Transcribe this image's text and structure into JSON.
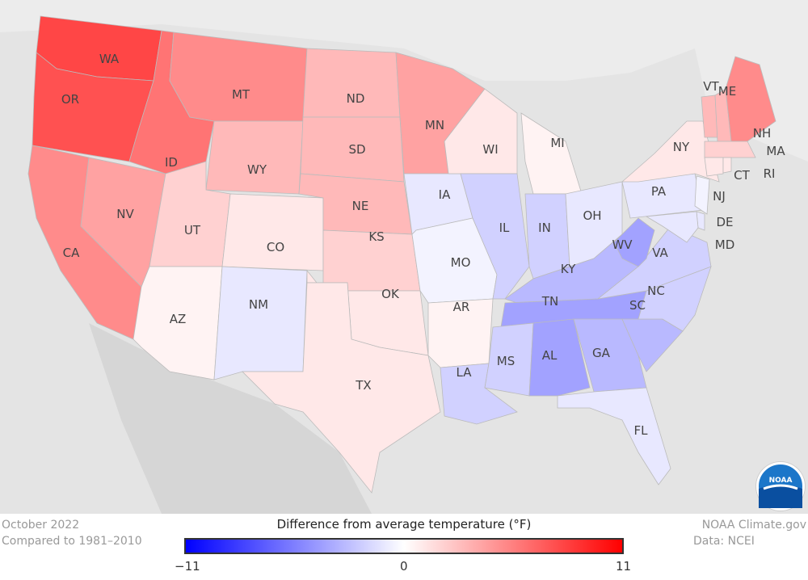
{
  "title": "Difference from average temperature (°F)",
  "period": "October 2022",
  "baseline": "Compared to 1981–2010",
  "credit": "NOAA Climate.gov",
  "source": "Data: NCEI",
  "logo_text": "NOAA",
  "legend": {
    "min": "−11",
    "mid": "0",
    "max": "11",
    "min_value": -11,
    "max_value": 11,
    "cold_color": "#0000ff",
    "warm_color": "#ff0000"
  },
  "states": [
    {
      "abbr": "WA",
      "anomaly": 8
    },
    {
      "abbr": "OR",
      "anomaly": 7.5
    },
    {
      "abbr": "CA",
      "anomaly": 5
    },
    {
      "abbr": "NV",
      "anomaly": 4
    },
    {
      "abbr": "ID",
      "anomaly": 6
    },
    {
      "abbr": "MT",
      "anomaly": 5
    },
    {
      "abbr": "WY",
      "anomaly": 3
    },
    {
      "abbr": "UT",
      "anomaly": 2
    },
    {
      "abbr": "CO",
      "anomaly": 1
    },
    {
      "abbr": "AZ",
      "anomaly": 0.5
    },
    {
      "abbr": "NM",
      "anomaly": -1
    },
    {
      "abbr": "ND",
      "anomaly": 3
    },
    {
      "abbr": "SD",
      "anomaly": 3
    },
    {
      "abbr": "NE",
      "anomaly": 3
    },
    {
      "abbr": "KS",
      "anomaly": 2
    },
    {
      "abbr": "OK",
      "anomaly": 1
    },
    {
      "abbr": "TX",
      "anomaly": 1
    },
    {
      "abbr": "MN",
      "anomaly": 4
    },
    {
      "abbr": "IA",
      "anomaly": -1
    },
    {
      "abbr": "MO",
      "anomaly": -0.5
    },
    {
      "abbr": "AR",
      "anomaly": 0.5
    },
    {
      "abbr": "LA",
      "anomaly": -2
    },
    {
      "abbr": "WI",
      "anomaly": 1
    },
    {
      "abbr": "IL",
      "anomaly": -2
    },
    {
      "abbr": "MI",
      "anomaly": 0.5
    },
    {
      "abbr": "IN",
      "anomaly": -2
    },
    {
      "abbr": "OH",
      "anomaly": -1
    },
    {
      "abbr": "KY",
      "anomaly": -3
    },
    {
      "abbr": "TN",
      "anomaly": -4
    },
    {
      "abbr": "MS",
      "anomaly": -2
    },
    {
      "abbr": "AL",
      "anomaly": -4
    },
    {
      "abbr": "GA",
      "anomaly": -3
    },
    {
      "abbr": "FL",
      "anomaly": -1
    },
    {
      "abbr": "SC",
      "anomaly": -3
    },
    {
      "abbr": "NC",
      "anomaly": -2
    },
    {
      "abbr": "VA",
      "anomaly": -2
    },
    {
      "abbr": "WV",
      "anomaly": -4
    },
    {
      "abbr": "PA",
      "anomaly": -1
    },
    {
      "abbr": "NY",
      "anomaly": 1
    },
    {
      "abbr": "VT",
      "anomaly": 3
    },
    {
      "abbr": "NH",
      "anomaly": 3
    },
    {
      "abbr": "ME",
      "anomaly": 5
    },
    {
      "abbr": "MA",
      "anomaly": 2
    },
    {
      "abbr": "CT",
      "anomaly": 1
    },
    {
      "abbr": "RI",
      "anomaly": 1
    },
    {
      "abbr": "NJ",
      "anomaly": -0.5
    },
    {
      "abbr": "DE",
      "anomaly": -1
    },
    {
      "abbr": "MD",
      "anomaly": -1
    }
  ]
}
